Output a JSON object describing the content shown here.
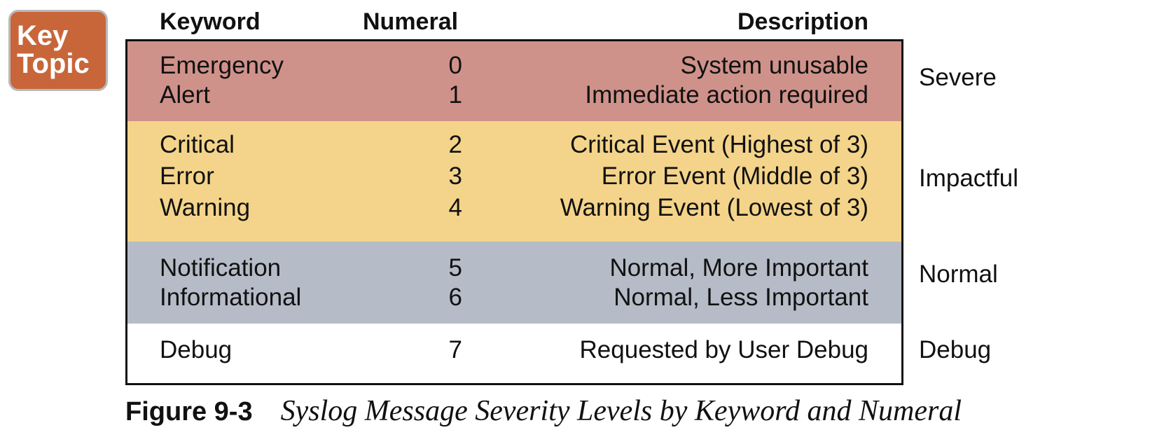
{
  "badge": {
    "line1": "Key",
    "line2": "Topic",
    "color": "#c8663a"
  },
  "table": {
    "headers": {
      "keyword": "Keyword",
      "numeral": "Numeral",
      "description": "Description"
    },
    "groups": [
      {
        "label": "Severe",
        "color": "#cf928a",
        "rows": [
          {
            "keyword": "Emergency",
            "numeral": "0",
            "description": "System unusable"
          },
          {
            "keyword": "Alert",
            "numeral": "1",
            "description": "Immediate action required"
          }
        ]
      },
      {
        "label": "Impactful",
        "color": "#f4d48a",
        "rows": [
          {
            "keyword": "Critical",
            "numeral": "2",
            "description": "Critical Event (Highest of 3)"
          },
          {
            "keyword": "Error",
            "numeral": "3",
            "description": "Error Event (Middle of 3)"
          },
          {
            "keyword": "Warning",
            "numeral": "4",
            "description": "Warning Event (Lowest of 3)"
          }
        ]
      },
      {
        "label": "Normal",
        "color": "#b5bcc7",
        "rows": [
          {
            "keyword": "Notification",
            "numeral": "5",
            "description": "Normal, More Important"
          },
          {
            "keyword": "Informational",
            "numeral": "6",
            "description": "Normal, Less Important"
          }
        ]
      },
      {
        "label": "Debug",
        "color": "#ffffff",
        "rows": [
          {
            "keyword": "Debug",
            "numeral": "7",
            "description": "Requested by User Debug"
          }
        ]
      }
    ]
  },
  "caption": {
    "label": "Figure 9-3",
    "text": "Syslog Message Severity Levels by Keyword and Numeral"
  }
}
